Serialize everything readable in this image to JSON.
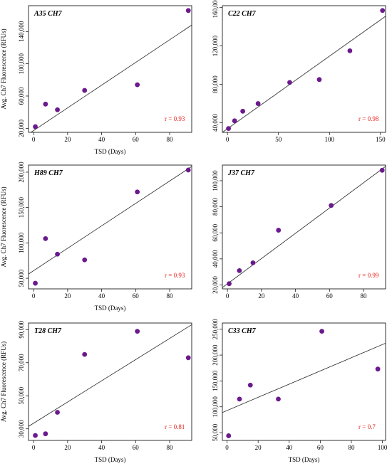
{
  "chart_data": [
    {
      "type": "scatter",
      "title": "A35 CH7",
      "xlabel": "TSD (Days)",
      "ylabel": "Avg. Ch7 Fluorescence (RFUs)",
      "xlim": [
        -3,
        93
      ],
      "ylim": [
        15000,
        172000
      ],
      "xticks": [
        "0",
        "20",
        "40",
        "60",
        "80"
      ],
      "yticks": [
        "20,000",
        "60,000",
        "100,000",
        "140,000"
      ],
      "x": [
        1,
        7,
        14,
        30,
        61,
        91
      ],
      "y": [
        22000,
        50000,
        43000,
        67000,
        74000,
        166000
      ],
      "fit": {
        "x": [
          -3,
          93
        ],
        "y": [
          13000,
          148000
        ]
      },
      "annotation": "r = 0.93",
      "point_color": "#6b1a8e"
    },
    {
      "type": "scatter",
      "title": "C22 CH7",
      "xlabel": "",
      "ylabel": "",
      "xlim": [
        -5,
        155
      ],
      "ylim": [
        30000,
        162000
      ],
      "xticks": [
        "0",
        "50",
        "100",
        "150"
      ],
      "yticks": [
        "40,000",
        "80,000",
        "120,000",
        "160,000"
      ],
      "x": [
        1,
        7,
        15,
        30,
        61,
        90,
        120,
        152
      ],
      "y": [
        34000,
        42000,
        52000,
        60000,
        82000,
        85000,
        115000,
        157000
      ],
      "fit": {
        "x": [
          -5,
          155
        ],
        "y": [
          30000,
          151000
        ]
      },
      "annotation": "r = 0.98",
      "point_color": "#6b1a8e"
    },
    {
      "type": "scatter",
      "title": "H89 CH7",
      "xlabel": "TSD (Days)",
      "ylabel": "Avg. Ch7 Fluorescence (RFUs)",
      "xlim": [
        -3,
        93
      ],
      "ylim": [
        35000,
        210000
      ],
      "xticks": [
        "0",
        "20",
        "40",
        "60",
        "80"
      ],
      "yticks": [
        "50,000",
        "100,000",
        "150,000",
        "200,000"
      ],
      "x": [
        1,
        7,
        14,
        30,
        61,
        91
      ],
      "y": [
        43000,
        106000,
        84000,
        76000,
        172000,
        203000
      ],
      "fit": {
        "x": [
          -3,
          93
        ],
        "y": [
          56000,
          208000
        ]
      },
      "annotation": "r = 0.93",
      "point_color": "#6b1a8e"
    },
    {
      "type": "scatter",
      "title": "J37 CH7",
      "xlabel": "",
      "ylabel": "",
      "xlim": [
        -3,
        93
      ],
      "ylim": [
        17000,
        112000
      ],
      "xticks": [
        "0",
        "20",
        "40",
        "60",
        "80"
      ],
      "yticks": [
        "20,000",
        "40,000",
        "60,000",
        "80,000",
        "100,000"
      ],
      "x": [
        1,
        7,
        15,
        30,
        61,
        91
      ],
      "y": [
        21000,
        31000,
        37000,
        62000,
        81000,
        108000
      ],
      "fit": {
        "x": [
          -3,
          93
        ],
        "y": [
          18000,
          111000
        ]
      },
      "annotation": "r = 0.99",
      "point_color": "#6b1a8e"
    },
    {
      "type": "scatter",
      "title": "T28 CH7",
      "xlabel": "TSD (Days)",
      "ylabel": "Avg. Ch7 Fluorescence (RFUs)",
      "xlim": [
        -3,
        93
      ],
      "ylim": [
        23000,
        94000
      ],
      "xticks": [
        "0",
        "20",
        "40",
        "60",
        "80"
      ],
      "yticks": [
        "30,000",
        "50,000",
        "70,000",
        "90,000"
      ],
      "x": [
        1,
        7,
        14,
        30,
        61,
        91
      ],
      "y": [
        26000,
        27000,
        40000,
        75000,
        89000,
        73000
      ],
      "fit": {
        "x": [
          -3,
          93
        ],
        "y": [
          31500,
          93000
        ]
      },
      "annotation": "r = 0.81",
      "point_color": "#6b1a8e"
    },
    {
      "type": "scatter",
      "title": "C33 CH7",
      "xlabel": "TSD (Days)",
      "ylabel": "",
      "xlim": [
        -3,
        102
      ],
      "ylim": [
        35000,
        262000
      ],
      "xticks": [
        "0",
        "20",
        "40",
        "60",
        "80",
        "100"
      ],
      "yticks": [
        "50,000",
        "100,000",
        "150,000",
        "200,000",
        "250,000"
      ],
      "x": [
        1,
        8,
        15,
        33,
        61,
        97
      ],
      "y": [
        44000,
        115000,
        142000,
        115000,
        246000,
        173000
      ],
      "fit": {
        "x": [
          -3,
          102
        ],
        "y": [
          89000,
          223000
        ]
      },
      "annotation": "r = 0.7",
      "point_color": "#6b1a8e"
    }
  ]
}
